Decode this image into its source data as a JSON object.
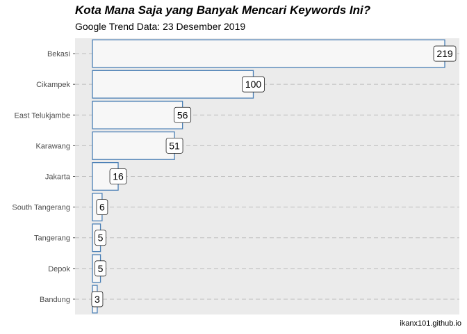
{
  "title": "Kota Mana Saja yang Banyak Mencari Keywords Ini?",
  "subtitle": "Google Trend Data: 23 Desember 2019",
  "caption": "ikanx101.github.io",
  "colors": {
    "panel": "#ebebeb",
    "bar_fill": "#f7f7f7",
    "bar_stroke": "#4a7fb5",
    "grid": "#bdbdbd"
  },
  "chart_data": {
    "type": "bar",
    "orientation": "horizontal",
    "title": "Kota Mana Saja yang Banyak Mencari Keywords Ini?",
    "subtitle": "Google Trend Data: 23 Desember 2019",
    "xlabel": "",
    "ylabel": "",
    "categories": [
      "Bekasi",
      "Cikampek",
      "East Telukjambe",
      "Karawang",
      "Jakarta",
      "South Tangerang",
      "Tangerang",
      "Depok",
      "Bandung"
    ],
    "values": [
      219,
      100,
      56,
      51,
      16,
      6,
      5,
      5,
      3
    ],
    "value_labels": [
      "219",
      "100",
      "56",
      "51",
      "16",
      "6",
      "5",
      "5",
      "3"
    ],
    "xlim": [
      0,
      230
    ],
    "grid": "dashed horizontal",
    "legend": "none"
  }
}
